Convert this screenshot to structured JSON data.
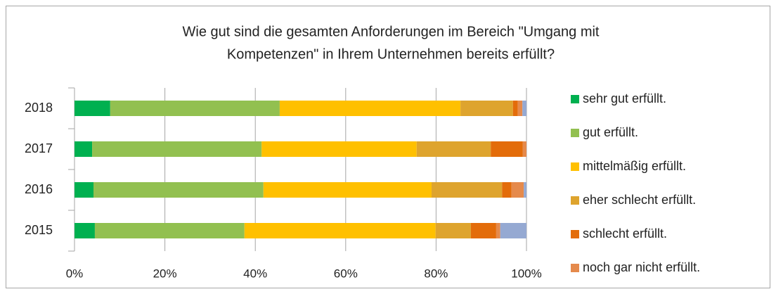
{
  "chart_data": {
    "type": "stacked-barh",
    "title": [
      "Wie gut sind die gesamten Anforderungen im Bereich \"Umgang mit",
      "Kompetenzen\" in Ihrem Unternehmen bereits erfüllt?"
    ],
    "categories": [
      "2018",
      "2017",
      "2016",
      "2015"
    ],
    "series": [
      {
        "name": "sehr gut erfüllt.",
        "color": "#00b050",
        "values": [
          7.9,
          3.9,
          4.2,
          4.5
        ]
      },
      {
        "name": "gut erfüllt.",
        "color": "#92c050",
        "values": [
          37.5,
          37.5,
          37.6,
          33.1
        ]
      },
      {
        "name": "mittelmäßig erfüllt.",
        "color": "#ffc000",
        "values": [
          40.0,
          34.3,
          37.2,
          42.3
        ]
      },
      {
        "name": "eher schlecht erfüllt.",
        "color": "#dea42e",
        "values": [
          11.6,
          16.4,
          15.6,
          7.8
        ]
      },
      {
        "name": "schlecht erfüllt.",
        "color": "#e36c0a",
        "values": [
          1.1,
          7.1,
          2.1,
          5.6
        ]
      },
      {
        "name": "noch gar nicht erfüllt.",
        "color": "#e58a4c",
        "values": [
          1.0,
          0.8,
          2.7,
          0.9
        ]
      },
      {
        "name": null,
        "color": "#95a9d2",
        "values": [
          0.9,
          0,
          0.6,
          5.8
        ]
      }
    ],
    "xlim": [
      0,
      100
    ],
    "xticks": [
      {
        "value": 0,
        "label": "0%"
      },
      {
        "value": 20,
        "label": "20%"
      },
      {
        "value": 40,
        "label": "40%"
      },
      {
        "value": 60,
        "label": "60%"
      },
      {
        "value": 80,
        "label": "80%"
      },
      {
        "value": 100,
        "label": "100%"
      }
    ],
    "grid": true
  }
}
